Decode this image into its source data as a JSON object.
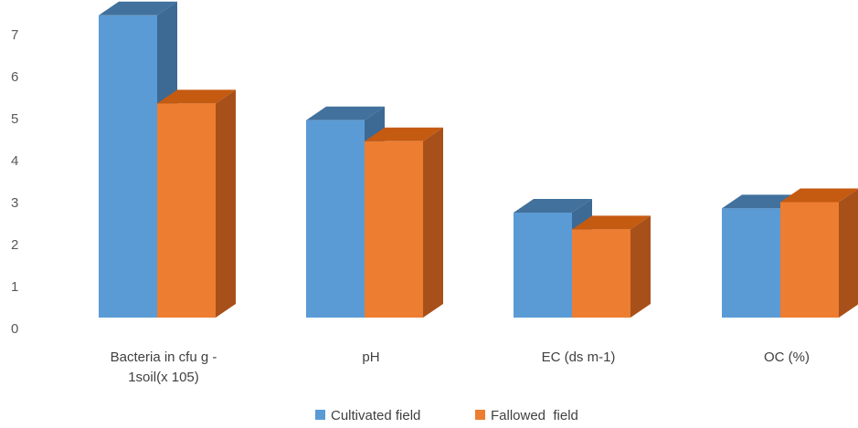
{
  "chart_data": {
    "type": "bar",
    "style": "3d-clustered-column",
    "title": "",
    "xlabel": "",
    "ylabel": "",
    "ylim": [
      0,
      7
    ],
    "yticks": [
      0,
      1,
      2,
      3,
      4,
      5,
      6,
      7
    ],
    "grid": false,
    "legend_position": "bottom",
    "categories": [
      [
        "Bacteria in cfu g -",
        "1soil(x 105)"
      ],
      [
        "pH"
      ],
      [
        "EC (ds m-1)"
      ],
      [
        "OC (%)"
      ]
    ],
    "series": [
      {
        "name": "Cultivated field",
        "values": [
          7.2,
          4.7,
          2.5,
          2.6
        ],
        "color": "#5B9BD5",
        "top_color": "#41719C",
        "side_color": "#3C6A95"
      },
      {
        "name": "Fallowed  field",
        "values": [
          5.1,
          4.2,
          2.1,
          2.75
        ],
        "color": "#ED7D31",
        "top_color": "#C55A11",
        "side_color": "#A8501A"
      }
    ]
  }
}
